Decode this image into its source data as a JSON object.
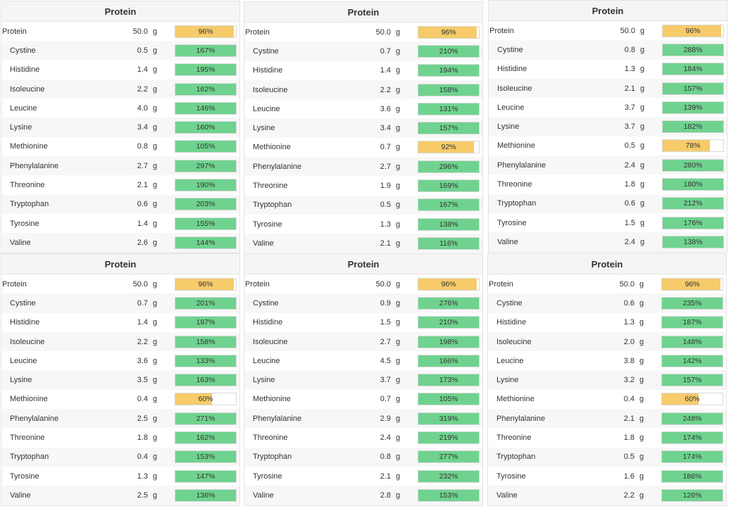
{
  "colors": {
    "ok": "#6fd38f",
    "low": "#f7cb6a"
  },
  "panels": [
    {
      "title": "Protein",
      "rows": [
        {
          "name": "Protein",
          "amount": "50.0",
          "unit": "g",
          "pct": "96%",
          "level": 0.96,
          "status": "low",
          "main": true
        },
        {
          "name": "Cystine",
          "amount": "0.5",
          "unit": "g",
          "pct": "167%",
          "level": 1,
          "status": "ok"
        },
        {
          "name": "Histidine",
          "amount": "1.4",
          "unit": "g",
          "pct": "195%",
          "level": 1,
          "status": "ok"
        },
        {
          "name": "Isoleucine",
          "amount": "2.2",
          "unit": "g",
          "pct": "162%",
          "level": 1,
          "status": "ok"
        },
        {
          "name": "Leucine",
          "amount": "4.0",
          "unit": "g",
          "pct": "146%",
          "level": 1,
          "status": "ok"
        },
        {
          "name": "Lysine",
          "amount": "3.4",
          "unit": "g",
          "pct": "160%",
          "level": 1,
          "status": "ok"
        },
        {
          "name": "Methionine",
          "amount": "0.8",
          "unit": "g",
          "pct": "105%",
          "level": 1,
          "status": "ok"
        },
        {
          "name": "Phenylalanine",
          "amount": "2.7",
          "unit": "g",
          "pct": "297%",
          "level": 1,
          "status": "ok"
        },
        {
          "name": "Threonine",
          "amount": "2.1",
          "unit": "g",
          "pct": "190%",
          "level": 1,
          "status": "ok"
        },
        {
          "name": "Tryptophan",
          "amount": "0.6",
          "unit": "g",
          "pct": "203%",
          "level": 1,
          "status": "ok"
        },
        {
          "name": "Tyrosine",
          "amount": "1.4",
          "unit": "g",
          "pct": "155%",
          "level": 1,
          "status": "ok"
        },
        {
          "name": "Valine",
          "amount": "2.6",
          "unit": "g",
          "pct": "144%",
          "level": 1,
          "status": "ok"
        }
      ]
    },
    {
      "title": "Protein",
      "rows": [
        {
          "name": "Protein",
          "amount": "50.0",
          "unit": "g",
          "pct": "96%",
          "level": 0.96,
          "status": "low",
          "main": true
        },
        {
          "name": "Cystine",
          "amount": "0.7",
          "unit": "g",
          "pct": "210%",
          "level": 1,
          "status": "ok"
        },
        {
          "name": "Histidine",
          "amount": "1.4",
          "unit": "g",
          "pct": "194%",
          "level": 1,
          "status": "ok"
        },
        {
          "name": "Isoleucine",
          "amount": "2.2",
          "unit": "g",
          "pct": "158%",
          "level": 1,
          "status": "ok"
        },
        {
          "name": "Leucine",
          "amount": "3.6",
          "unit": "g",
          "pct": "131%",
          "level": 1,
          "status": "ok"
        },
        {
          "name": "Lysine",
          "amount": "3.4",
          "unit": "g",
          "pct": "157%",
          "level": 1,
          "status": "ok"
        },
        {
          "name": "Methionine",
          "amount": "0.7",
          "unit": "g",
          "pct": "92%",
          "level": 0.92,
          "status": "low"
        },
        {
          "name": "Phenylalanine",
          "amount": "2.7",
          "unit": "g",
          "pct": "296%",
          "level": 1,
          "status": "ok"
        },
        {
          "name": "Threonine",
          "amount": "1.9",
          "unit": "g",
          "pct": "169%",
          "level": 1,
          "status": "ok"
        },
        {
          "name": "Tryptophan",
          "amount": "0.5",
          "unit": "g",
          "pct": "167%",
          "level": 1,
          "status": "ok"
        },
        {
          "name": "Tyrosine",
          "amount": "1.3",
          "unit": "g",
          "pct": "138%",
          "level": 1,
          "status": "ok"
        },
        {
          "name": "Valine",
          "amount": "2.1",
          "unit": "g",
          "pct": "116%",
          "level": 1,
          "status": "ok"
        }
      ]
    },
    {
      "title": "Protein",
      "rows": [
        {
          "name": "Protein",
          "amount": "50.0",
          "unit": "g",
          "pct": "96%",
          "level": 0.96,
          "status": "low",
          "main": true
        },
        {
          "name": "Cystine",
          "amount": "0.8",
          "unit": "g",
          "pct": "288%",
          "level": 1,
          "status": "ok"
        },
        {
          "name": "Histidine",
          "amount": "1.3",
          "unit": "g",
          "pct": "184%",
          "level": 1,
          "status": "ok"
        },
        {
          "name": "Isoleucine",
          "amount": "2.1",
          "unit": "g",
          "pct": "157%",
          "level": 1,
          "status": "ok"
        },
        {
          "name": "Leucine",
          "amount": "3.7",
          "unit": "g",
          "pct": "139%",
          "level": 1,
          "status": "ok"
        },
        {
          "name": "Lysine",
          "amount": "3.7",
          "unit": "g",
          "pct": "182%",
          "level": 1,
          "status": "ok"
        },
        {
          "name": "Methionine",
          "amount": "0.5",
          "unit": "g",
          "pct": "78%",
          "level": 0.78,
          "status": "low"
        },
        {
          "name": "Phenylalanine",
          "amount": "2.4",
          "unit": "g",
          "pct": "280%",
          "level": 1,
          "status": "ok"
        },
        {
          "name": "Threonine",
          "amount": "1.8",
          "unit": "g",
          "pct": "180%",
          "level": 1,
          "status": "ok"
        },
        {
          "name": "Tryptophan",
          "amount": "0.6",
          "unit": "g",
          "pct": "212%",
          "level": 1,
          "status": "ok"
        },
        {
          "name": "Tyrosine",
          "amount": "1.5",
          "unit": "g",
          "pct": "176%",
          "level": 1,
          "status": "ok"
        },
        {
          "name": "Valine",
          "amount": "2.4",
          "unit": "g",
          "pct": "138%",
          "level": 1,
          "status": "ok"
        }
      ]
    },
    {
      "title": "Protein",
      "rows": [
        {
          "name": "Protein",
          "amount": "50.0",
          "unit": "g",
          "pct": "96%",
          "level": 0.96,
          "status": "low",
          "main": true
        },
        {
          "name": "Cystine",
          "amount": "0.7",
          "unit": "g",
          "pct": "201%",
          "level": 1,
          "status": "ok"
        },
        {
          "name": "Histidine",
          "amount": "1.4",
          "unit": "g",
          "pct": "197%",
          "level": 1,
          "status": "ok"
        },
        {
          "name": "Isoleucine",
          "amount": "2.2",
          "unit": "g",
          "pct": "158%",
          "level": 1,
          "status": "ok"
        },
        {
          "name": "Leucine",
          "amount": "3.6",
          "unit": "g",
          "pct": "133%",
          "level": 1,
          "status": "ok"
        },
        {
          "name": "Lysine",
          "amount": "3.5",
          "unit": "g",
          "pct": "163%",
          "level": 1,
          "status": "ok"
        },
        {
          "name": "Methionine",
          "amount": "0.4",
          "unit": "g",
          "pct": "60%",
          "level": 0.6,
          "status": "low"
        },
        {
          "name": "Phenylalanine",
          "amount": "2.5",
          "unit": "g",
          "pct": "271%",
          "level": 1,
          "status": "ok"
        },
        {
          "name": "Threonine",
          "amount": "1.8",
          "unit": "g",
          "pct": "162%",
          "level": 1,
          "status": "ok"
        },
        {
          "name": "Tryptophan",
          "amount": "0.4",
          "unit": "g",
          "pct": "153%",
          "level": 1,
          "status": "ok"
        },
        {
          "name": "Tyrosine",
          "amount": "1.3",
          "unit": "g",
          "pct": "147%",
          "level": 1,
          "status": "ok"
        },
        {
          "name": "Valine",
          "amount": "2.5",
          "unit": "g",
          "pct": "136%",
          "level": 1,
          "status": "ok"
        }
      ]
    },
    {
      "title": "Protein",
      "rows": [
        {
          "name": "Protein",
          "amount": "50.0",
          "unit": "g",
          "pct": "96%",
          "level": 0.96,
          "status": "low",
          "main": true
        },
        {
          "name": "Cystine",
          "amount": "0.9",
          "unit": "g",
          "pct": "276%",
          "level": 1,
          "status": "ok"
        },
        {
          "name": "Histidine",
          "amount": "1.5",
          "unit": "g",
          "pct": "210%",
          "level": 1,
          "status": "ok"
        },
        {
          "name": "Isoleucine",
          "amount": "2.7",
          "unit": "g",
          "pct": "198%",
          "level": 1,
          "status": "ok"
        },
        {
          "name": "Leucine",
          "amount": "4.5",
          "unit": "g",
          "pct": "166%",
          "level": 1,
          "status": "ok"
        },
        {
          "name": "Lysine",
          "amount": "3.7",
          "unit": "g",
          "pct": "173%",
          "level": 1,
          "status": "ok"
        },
        {
          "name": "Methionine",
          "amount": "0.7",
          "unit": "g",
          "pct": "105%",
          "level": 1,
          "status": "ok"
        },
        {
          "name": "Phenylalanine",
          "amount": "2.9",
          "unit": "g",
          "pct": "319%",
          "level": 1,
          "status": "ok"
        },
        {
          "name": "Threonine",
          "amount": "2.4",
          "unit": "g",
          "pct": "219%",
          "level": 1,
          "status": "ok"
        },
        {
          "name": "Tryptophan",
          "amount": "0.8",
          "unit": "g",
          "pct": "277%",
          "level": 1,
          "status": "ok"
        },
        {
          "name": "Tyrosine",
          "amount": "2.1",
          "unit": "g",
          "pct": "232%",
          "level": 1,
          "status": "ok"
        },
        {
          "name": "Valine",
          "amount": "2.8",
          "unit": "g",
          "pct": "153%",
          "level": 1,
          "status": "ok"
        }
      ]
    },
    {
      "title": "Protein",
      "rows": [
        {
          "name": "Protein",
          "amount": "50.0",
          "unit": "g",
          "pct": "96%",
          "level": 0.96,
          "status": "low",
          "main": true
        },
        {
          "name": "Cystine",
          "amount": "0.6",
          "unit": "g",
          "pct": "235%",
          "level": 1,
          "status": "ok"
        },
        {
          "name": "Histidine",
          "amount": "1.3",
          "unit": "g",
          "pct": "187%",
          "level": 1,
          "status": "ok"
        },
        {
          "name": "Isoleucine",
          "amount": "2.0",
          "unit": "g",
          "pct": "148%",
          "level": 1,
          "status": "ok"
        },
        {
          "name": "Leucine",
          "amount": "3.8",
          "unit": "g",
          "pct": "142%",
          "level": 1,
          "status": "ok"
        },
        {
          "name": "Lysine",
          "amount": "3.2",
          "unit": "g",
          "pct": "157%",
          "level": 1,
          "status": "ok"
        },
        {
          "name": "Methionine",
          "amount": "0.4",
          "unit": "g",
          "pct": "60%",
          "level": 0.6,
          "status": "low"
        },
        {
          "name": "Phenylalanine",
          "amount": "2.1",
          "unit": "g",
          "pct": "248%",
          "level": 1,
          "status": "ok"
        },
        {
          "name": "Threonine",
          "amount": "1.8",
          "unit": "g",
          "pct": "174%",
          "level": 1,
          "status": "ok"
        },
        {
          "name": "Tryptophan",
          "amount": "0.5",
          "unit": "g",
          "pct": "174%",
          "level": 1,
          "status": "ok"
        },
        {
          "name": "Tyrosine",
          "amount": "1.6",
          "unit": "g",
          "pct": "186%",
          "level": 1,
          "status": "ok"
        },
        {
          "name": "Valine",
          "amount": "2.2",
          "unit": "g",
          "pct": "126%",
          "level": 1,
          "status": "ok"
        }
      ]
    }
  ]
}
